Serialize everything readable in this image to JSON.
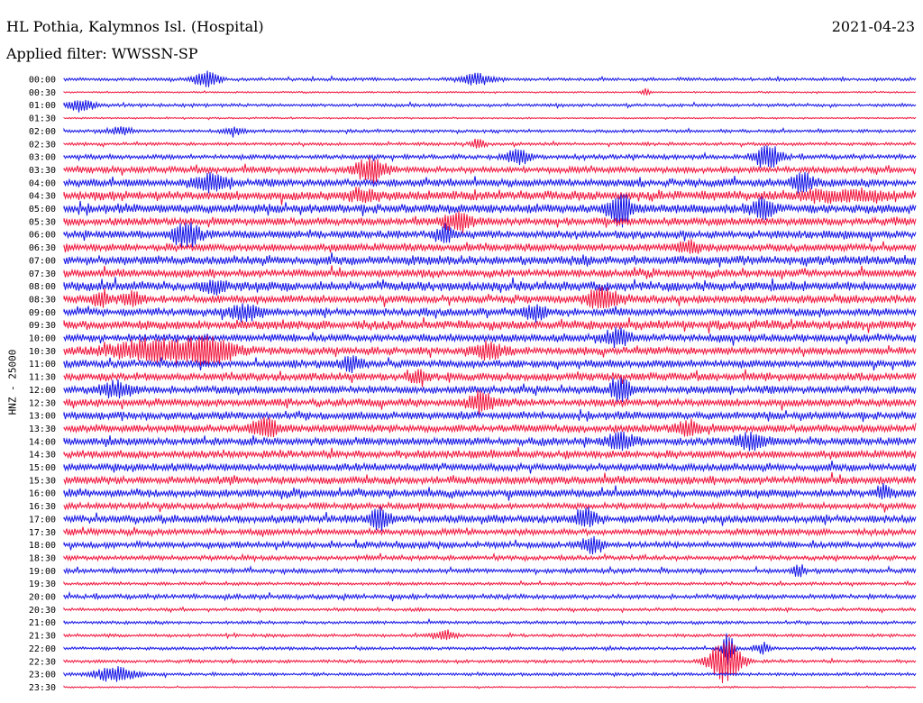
{
  "header": {
    "station": "HL Pothia, Kalymnos Isl. (Hospital)",
    "date": "2021-04-23",
    "filter": "Applied filter: WWSSN-SP"
  },
  "colors": {
    "even_trace": "#1414e6",
    "odd_trace": "#f0143c"
  },
  "chart_data": {
    "type": "line",
    "title": "",
    "xlabel": "",
    "ylabel": "HNZ - 25000",
    "rows": [
      "00:00",
      "00:30",
      "01:00",
      "01:30",
      "02:00",
      "02:30",
      "03:00",
      "03:30",
      "04:00",
      "04:30",
      "05:00",
      "05:30",
      "06:00",
      "06:30",
      "07:00",
      "07:30",
      "08:00",
      "08:30",
      "09:00",
      "09:30",
      "10:00",
      "10:30",
      "11:00",
      "11:30",
      "12:00",
      "12:30",
      "13:00",
      "13:30",
      "14:00",
      "14:30",
      "15:00",
      "15:30",
      "16:00",
      "16:30",
      "17:00",
      "17:30",
      "18:00",
      "18:30",
      "19:00",
      "19:30",
      "20:00",
      "20:30",
      "21:00",
      "21:30",
      "22:00",
      "22:30",
      "23:00",
      "23:30"
    ],
    "x_range_minutes": [
      0,
      30
    ],
    "grid": false,
    "noise_level": [
      2,
      1,
      2,
      1,
      2,
      2,
      3,
      4,
      5,
      6,
      6,
      5,
      5,
      5,
      6,
      5,
      6,
      5,
      5,
      6,
      5,
      5,
      5,
      5,
      5,
      5,
      5,
      5,
      5,
      5,
      5,
      5,
      5,
      4,
      5,
      4,
      4,
      3,
      3,
      2,
      3,
      2,
      2,
      2,
      2,
      2,
      2,
      1
    ],
    "events": [
      {
        "row": "00:00",
        "minute": 5.0,
        "amplitude": 8,
        "duration": 1.2
      },
      {
        "row": "00:00",
        "minute": 14.5,
        "amplitude": 6,
        "duration": 1.5
      },
      {
        "row": "00:30",
        "minute": 20.5,
        "amplitude": 4,
        "duration": 0.4
      },
      {
        "row": "01:00",
        "minute": 0.6,
        "amplitude": 7,
        "duration": 1.2
      },
      {
        "row": "02:00",
        "minute": 2.0,
        "amplitude": 4,
        "duration": 1.0
      },
      {
        "row": "02:00",
        "minute": 6.0,
        "amplitude": 4,
        "duration": 0.8
      },
      {
        "row": "02:30",
        "minute": 14.6,
        "amplitude": 5,
        "duration": 0.6
      },
      {
        "row": "03:00",
        "minute": 16.0,
        "amplitude": 9,
        "duration": 1.0
      },
      {
        "row": "03:00",
        "minute": 24.8,
        "amplitude": 12,
        "duration": 1.2
      },
      {
        "row": "03:30",
        "minute": 10.8,
        "amplitude": 12,
        "duration": 1.4
      },
      {
        "row": "04:00",
        "minute": 5.2,
        "amplitude": 8,
        "duration": 1.5
      },
      {
        "row": "04:00",
        "minute": 26.0,
        "amplitude": 10,
        "duration": 1.0
      },
      {
        "row": "04:30",
        "minute": 10.5,
        "amplitude": 6,
        "duration": 1.2
      },
      {
        "row": "04:30",
        "minute": 27.5,
        "amplitude": 5,
        "duration": 4.0
      },
      {
        "row": "05:00",
        "minute": 19.6,
        "amplitude": 18,
        "duration": 1.0
      },
      {
        "row": "05:00",
        "minute": 24.6,
        "amplitude": 11,
        "duration": 1.0
      },
      {
        "row": "05:30",
        "minute": 13.8,
        "amplitude": 8,
        "duration": 1.4
      },
      {
        "row": "06:00",
        "minute": 4.3,
        "amplitude": 13,
        "duration": 1.2
      },
      {
        "row": "06:00",
        "minute": 13.4,
        "amplitude": 9,
        "duration": 0.8
      },
      {
        "row": "06:30",
        "minute": 22.0,
        "amplitude": 6,
        "duration": 1.0
      },
      {
        "row": "08:00",
        "minute": 5.3,
        "amplitude": 6,
        "duration": 1.0
      },
      {
        "row": "08:30",
        "minute": 1.3,
        "amplitude": 9,
        "duration": 0.8
      },
      {
        "row": "08:30",
        "minute": 2.4,
        "amplitude": 8,
        "duration": 0.8
      },
      {
        "row": "08:30",
        "minute": 19.0,
        "amplitude": 12,
        "duration": 1.4
      },
      {
        "row": "09:00",
        "minute": 6.4,
        "amplitude": 8,
        "duration": 1.5
      },
      {
        "row": "09:00",
        "minute": 16.6,
        "amplitude": 8,
        "duration": 1.0
      },
      {
        "row": "10:00",
        "minute": 19.5,
        "amplitude": 9,
        "duration": 1.0
      },
      {
        "row": "10:30",
        "minute": 3.3,
        "amplitude": 11,
        "duration": 4.5
      },
      {
        "row": "10:30",
        "minute": 5.2,
        "amplitude": 12,
        "duration": 2.0
      },
      {
        "row": "10:30",
        "minute": 15.0,
        "amplitude": 9,
        "duration": 1.2
      },
      {
        "row": "11:00",
        "minute": 10.1,
        "amplitude": 7,
        "duration": 1.0
      },
      {
        "row": "11:30",
        "minute": 12.5,
        "amplitude": 6,
        "duration": 0.8
      },
      {
        "row": "12:00",
        "minute": 1.8,
        "amplitude": 8,
        "duration": 1.5
      },
      {
        "row": "12:00",
        "minute": 19.6,
        "amplitude": 14,
        "duration": 0.8
      },
      {
        "row": "12:30",
        "minute": 14.7,
        "amplitude": 10,
        "duration": 1.2
      },
      {
        "row": "13:30",
        "minute": 7.1,
        "amplitude": 10,
        "duration": 1.2
      },
      {
        "row": "13:30",
        "minute": 22.0,
        "amplitude": 8,
        "duration": 1.2
      },
      {
        "row": "14:00",
        "minute": 19.6,
        "amplitude": 9,
        "duration": 1.2
      },
      {
        "row": "14:00",
        "minute": 24.2,
        "amplitude": 8,
        "duration": 1.4
      },
      {
        "row": "16:00",
        "minute": 28.9,
        "amplitude": 6,
        "duration": 0.8
      },
      {
        "row": "17:00",
        "minute": 11.1,
        "amplitude": 12,
        "duration": 0.8
      },
      {
        "row": "17:00",
        "minute": 18.4,
        "amplitude": 8,
        "duration": 1.0
      },
      {
        "row": "18:00",
        "minute": 18.6,
        "amplitude": 8,
        "duration": 1.0
      },
      {
        "row": "19:00",
        "minute": 25.9,
        "amplitude": 6,
        "duration": 0.5
      },
      {
        "row": "21:30",
        "minute": 13.4,
        "amplitude": 5,
        "duration": 1.0
      },
      {
        "row": "22:00",
        "minute": 23.4,
        "amplitude": 20,
        "duration": 0.5
      },
      {
        "row": "22:00",
        "minute": 24.6,
        "amplitude": 6,
        "duration": 0.6
      },
      {
        "row": "22:30",
        "minute": 23.3,
        "amplitude": 24,
        "duration": 1.4
      },
      {
        "row": "23:00",
        "minute": 1.8,
        "amplitude": 8,
        "duration": 1.8
      }
    ]
  }
}
